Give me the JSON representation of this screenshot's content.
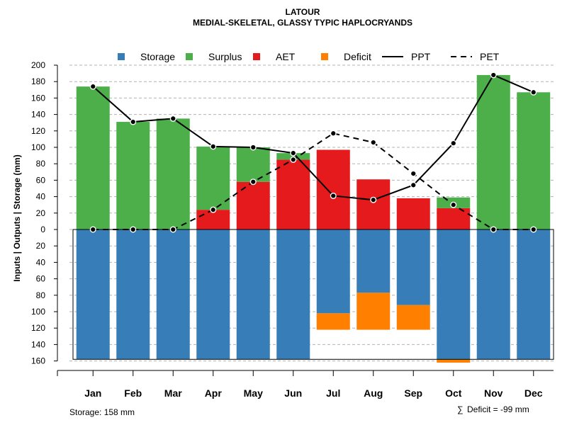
{
  "chart_data": {
    "type": "bar",
    "title": "LATOUR",
    "subtitle": "MEDIAL-SKELETAL, GLASSY TYPIC HAPLOCRYANDS",
    "ylabel": "Inputs | Outputs | Storage    (mm)",
    "xlabel": "",
    "ylim": [
      -160,
      200
    ],
    "yticks": [
      200,
      180,
      160,
      140,
      120,
      100,
      80,
      60,
      40,
      20,
      0,
      -20,
      -40,
      -60,
      -80,
      -100,
      -120,
      -140,
      -160
    ],
    "ytick_labels": [
      "200",
      "180",
      "160",
      "140",
      "120",
      "100",
      "80",
      "60",
      "40",
      "20",
      "0",
      "20",
      "40",
      "60",
      "80",
      "100",
      "120",
      "140",
      "160"
    ],
    "categories": [
      "Jan",
      "Feb",
      "Mar",
      "Apr",
      "May",
      "Jun",
      "Jul",
      "Aug",
      "Sep",
      "Oct",
      "Nov",
      "Dec"
    ],
    "legend": {
      "position": "top",
      "entries": [
        {
          "label": "Storage",
          "kind": "box",
          "color": "#377EB8"
        },
        {
          "label": "Surplus",
          "kind": "box",
          "color": "#4DAF4A"
        },
        {
          "label": "AET",
          "kind": "box",
          "color": "#E41A1C"
        },
        {
          "label": "Deficit",
          "kind": "box",
          "color": "#FF7F00"
        },
        {
          "label": "PPT",
          "kind": "solid-line",
          "color": "#000000"
        },
        {
          "label": "PET",
          "kind": "dashed-line",
          "color": "#000000"
        }
      ]
    },
    "series": [
      {
        "name": "AET",
        "color": "#E41A1C",
        "values": [
          0,
          0,
          0,
          24,
          58,
          85,
          97,
          61,
          38,
          26,
          0,
          0
        ]
      },
      {
        "name": "Surplus",
        "color": "#4DAF4A",
        "values": [
          174,
          131,
          135,
          77,
          42,
          8,
          0,
          0,
          0,
          13,
          188,
          167
        ]
      },
      {
        "name": "Storage",
        "color": "#377EB8",
        "values": [
          158,
          158,
          158,
          158,
          158,
          158,
          102,
          77,
          92,
          158,
          158,
          158
        ]
      },
      {
        "name": "Deficit",
        "color": "#FF7F00",
        "values": [
          0,
          0,
          0,
          0,
          0,
          0,
          20,
          45,
          30,
          4,
          0,
          0
        ]
      },
      {
        "name": "PPT",
        "color": "#000000",
        "values": [
          174,
          131,
          135,
          101,
          100,
          93,
          41,
          36,
          54,
          105,
          188,
          167
        ]
      },
      {
        "name": "PET",
        "color": "#000000",
        "values": [
          0,
          0,
          0,
          24,
          58,
          85,
          117,
          106,
          68,
          30,
          0,
          0
        ]
      }
    ],
    "storage_capacity": 158,
    "grid": true
  },
  "footer": {
    "storage_text": "Storage: 158 mm",
    "deficit_symbol": "∑",
    "deficit_text": "Deficit = -99 mm"
  }
}
